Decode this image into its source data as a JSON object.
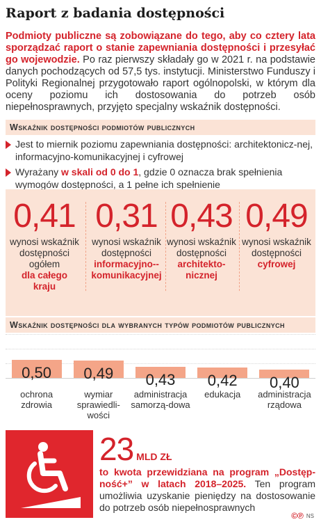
{
  "title": "Raport z badania dostępności",
  "intro": {
    "lead": "Podmioty publiczne są zobowiązane do tego, aby co cztery lata sporządzać raport o stanie zapewniania dostępności i przesyłać go wojewodzie.",
    "text": " Po raz pierwszy składały go w 2021 r. na podstawie danych pochodzących od 57,5 tys. instytucji. Ministerstwo Funduszy i Polityki Regionalnej przygotowało raport ogólnopolski, w którym dla oceny poziomu ich dostosowania do potrzeb osób niepełnosprawnych, przyjęto specjalny wskaźnik dostępności."
  },
  "section1": {
    "title": "Wskaźnik dostępności podmiotów publicznych"
  },
  "bullets": [
    {
      "pre": "Jest to miernik poziomu zapewniania dostępności: architektonicz-nej, informacyjno-komunikacyjnej i cyfrowej",
      "hl": "",
      "post": ""
    },
    {
      "pre": "Wyrażany ",
      "hl": "w skali od 0 do 1",
      "post": ", gdzie 0 oznacza brak spełnienia wymogów dostępności, a 1 pełne ich spełnienie"
    }
  ],
  "stats": [
    {
      "value": "0,41",
      "desc": "wynosi wskaźnik dostępności ogółem",
      "em": "dla całego kraju"
    },
    {
      "value": "0,31",
      "desc": "wynosi wskaźnik dostępności",
      "em": "informacyjno--komunikacyjnej"
    },
    {
      "value": "0,43",
      "desc": "wynosi wskaźnik dostępności",
      "em": "architekto-nicznej"
    },
    {
      "value": "0,49",
      "desc": "wynosi wskaźnik dostępności",
      "em": "cyfrowej"
    }
  ],
  "section2": {
    "title": "Wskaźnik dostępności dla wybranych typów podmiotów publicznych"
  },
  "chart_data": {
    "type": "bar",
    "categories": [
      "ochrona zdrowia",
      "wymiar sprawiedli-wości",
      "administracja samorzą-dowa",
      "edukacja",
      "administracja rządowa"
    ],
    "values": [
      0.5,
      0.49,
      0.43,
      0.42,
      0.4
    ],
    "value_labels": [
      "0,50",
      "0,49",
      "0,43",
      "0,42",
      "0,40"
    ],
    "bar_color": "#f4a588",
    "grid": true,
    "title": "",
    "xlabel": "",
    "ylabel": ""
  },
  "promo": {
    "icon": "wheelchair-icon",
    "number": "23",
    "unit": "MLD ZŁ",
    "lead": "to kwota przewidziana na program „Dostęp-ność+” w latach 2018–2025.",
    "text": " Ten program umożliwia uzyskanie pieniędzy na dostosowanie do potrzeb osób niepełnosprawnych"
  },
  "credit": {
    "mark": "©℗",
    "text": "NS"
  },
  "colors": {
    "accent": "#d4232b",
    "panel": "#fbe3d6",
    "bar": "#f4a588"
  }
}
